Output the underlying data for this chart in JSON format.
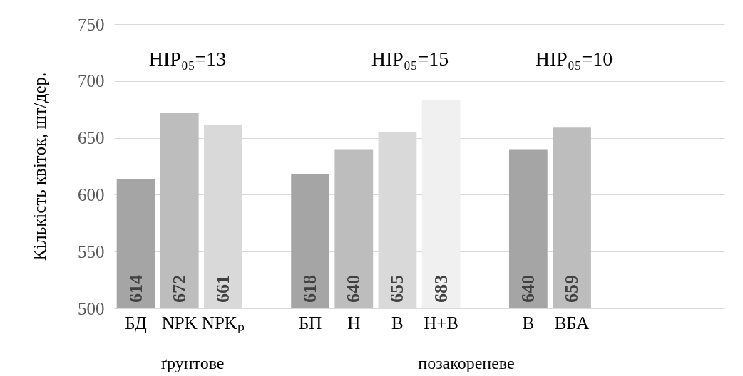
{
  "chart_data": {
    "type": "bar",
    "ylabel": "Кількість квіток, шт/дер.",
    "categories": [
      "БД",
      "NPK",
      "NPKₚ",
      null,
      "БП",
      "Н",
      "В",
      "Н+В",
      null,
      "В",
      "ВБА",
      null,
      null,
      null
    ],
    "values": [
      614,
      672,
      661,
      null,
      618,
      640,
      655,
      683,
      null,
      640,
      659,
      null,
      null,
      null
    ],
    "colors": [
      "#a5a5a5",
      "#bdbdbd",
      "#d9d9d9",
      null,
      "#a5a5a5",
      "#bdbdbd",
      "#d9d9d9",
      "#f0f0f0",
      null,
      "#a5a5a5",
      "#bdbdbd",
      null,
      null,
      null
    ],
    "ylim": [
      500,
      750
    ],
    "yticks": [
      500,
      550,
      600,
      650,
      700,
      750
    ],
    "grid": "y",
    "data_labels": true,
    "annotations": [
      "НІР₀₅=13",
      "НІР₀₅=15",
      "НІР₀₅=10",
      "ґрунтове",
      "позакореневе"
    ]
  }
}
